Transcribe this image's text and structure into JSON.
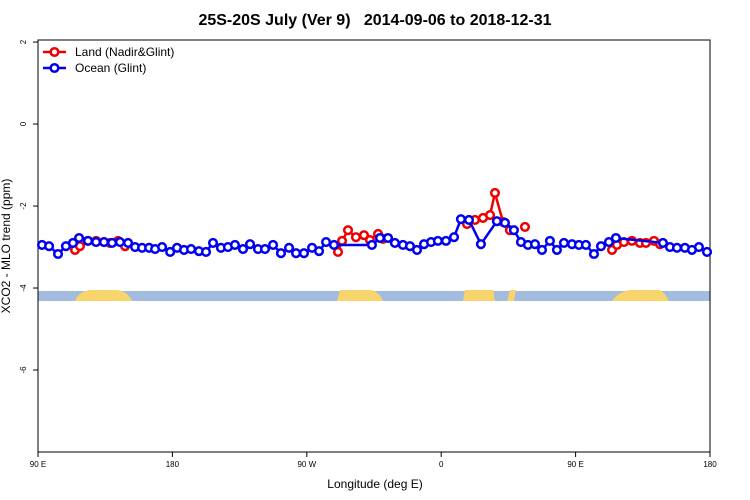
{
  "chart_data": {
    "type": "line",
    "title": "25S-20S July (Ver 9)   2014-09-06 to 2018-12-31",
    "xlabel": "Longitude (deg E)",
    "ylabel": "XCO2 - MLO trend (ppm)",
    "xlim": [
      90,
      540
    ],
    "ylim": [
      -8,
      2.05
    ],
    "xticks": [
      {
        "value": 90,
        "label": "90 E"
      },
      180,
      {
        "value": 270,
        "label": "90 W"
      },
      {
        "value": 360,
        "label": "0"
      },
      {
        "value": 450,
        "label": "90 E"
      },
      {
        "value": 540,
        "label": "180"
      }
    ],
    "yticks": [
      2,
      0,
      -2,
      -4,
      -6
    ],
    "legend": "top-left",
    "series": [
      {
        "name": "Land (Nadir&Glint)",
        "color": "#ee0000",
        "x": [
          114.8,
          118.1,
          123.5,
          128.9,
          134.2,
          138.2,
          143.6,
          148.3,
          220,
          290.9,
          293.6,
          297.6,
          302.9,
          308.3,
          312.3,
          317.7,
          321.0,
          350,
          377.3,
          382.6,
          388.0,
          392.7,
          396.0,
          401.4,
          406.0,
          411,
          416.1,
          440,
          474.4,
          477.7,
          482.4,
          487.7,
          493.1,
          497.1,
          502.5,
          506.5
        ],
        "values": [
          -3.07,
          -2.98,
          -2.85,
          -2.85,
          -2.88,
          -2.9,
          -2.85,
          -2.98,
          null,
          -3.12,
          -2.85,
          -2.59,
          -2.76,
          -2.71,
          -2.83,
          -2.68,
          -2.8,
          null,
          -2.44,
          -2.34,
          -2.29,
          -2.22,
          -1.68,
          -2.39,
          -2.59,
          null,
          -2.51,
          null,
          -3.07,
          -2.95,
          -2.88,
          -2.85,
          -2.9,
          -2.9,
          -2.85,
          -2.93
        ]
      },
      {
        "name": "Ocean (Glint)",
        "color": "#0000ee",
        "x": [
          92.7,
          97.4,
          103.4,
          108.7,
          113.4,
          117.5,
          123.5,
          128.9,
          134.2,
          139.6,
          144.9,
          150.3,
          155.0,
          159.7,
          164.4,
          168.4,
          173.1,
          178.5,
          183.1,
          187.8,
          192.5,
          197.8,
          202.5,
          207.2,
          212.5,
          217.2,
          221.9,
          227.3,
          232.0,
          237.3,
          242.0,
          247.4,
          252.7,
          258.1,
          262.8,
          268.1,
          273.5,
          278.2,
          282.9,
          288.2,
          313.6,
          319.0,
          324.4,
          329.0,
          334.4,
          339.1,
          343.8,
          348.5,
          353.2,
          357.8,
          363.2,
          368.6,
          373.2,
          378.6,
          386.6,
          397.3,
          402.7,
          408.7,
          413.4,
          418.1,
          422.8,
          427.5,
          432.8,
          437.5,
          442.2,
          447.6,
          452.2,
          456.9,
          462.3,
          467.0,
          472.3,
          477.0,
          508.5,
          513.2,
          517.9,
          523.2,
          527.9,
          532.6,
          538.0
        ],
        "values": [
          -2.95,
          -2.98,
          -3.17,
          -2.98,
          -2.9,
          -2.78,
          -2.85,
          -2.88,
          -2.88,
          -2.9,
          -2.88,
          -2.9,
          -3.0,
          -3.02,
          -3.02,
          -3.05,
          -3.0,
          -3.12,
          -3.02,
          -3.07,
          -3.05,
          -3.1,
          -3.12,
          -2.9,
          -3.02,
          -3.0,
          -2.95,
          -3.05,
          -2.93,
          -3.05,
          -3.05,
          -2.95,
          -3.15,
          -3.02,
          -3.15,
          -3.15,
          -3.02,
          -3.1,
          -2.88,
          -2.95,
          -2.95,
          -2.78,
          -2.78,
          -2.9,
          -2.95,
          -2.98,
          -3.07,
          -2.93,
          -2.88,
          -2.85,
          -2.85,
          -2.76,
          -2.32,
          -2.34,
          -2.93,
          -2.37,
          -2.41,
          -2.59,
          -2.88,
          -2.95,
          -2.93,
          -3.07,
          -2.85,
          -3.07,
          -2.9,
          -2.93,
          -2.95,
          -2.95,
          -3.17,
          -2.98,
          -2.88,
          -2.78,
          -2.9,
          -3.0,
          -3.02,
          -3.02,
          -3.07,
          -3.0,
          -3.12
        ]
      }
    ]
  }
}
